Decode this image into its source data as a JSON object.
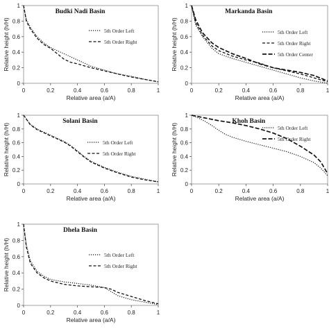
{
  "chart_data": [
    {
      "type": "line",
      "title": "Budki Nadi Basin",
      "xlabel": "Relative area (a/A)",
      "ylabel": "Relative height (h/H)",
      "xlim": [
        0,
        1
      ],
      "ylim": [
        0,
        1
      ],
      "xticks": [
        "0",
        "0.2",
        "0.4",
        "0.6",
        "0.8",
        "1"
      ],
      "yticks": [
        "0",
        "0.2",
        "0.4",
        "0.6",
        "0.8",
        "1"
      ],
      "grid": false,
      "legend": "top-right",
      "series": [
        {
          "name": "5th Order Left",
          "style": "dotted",
          "x": [
            0,
            0.02,
            0.05,
            0.1,
            0.15,
            0.2,
            0.25,
            0.3,
            0.4,
            0.5,
            0.6,
            0.7,
            0.8,
            0.9,
            1.0
          ],
          "y": [
            1.0,
            0.82,
            0.72,
            0.6,
            0.52,
            0.46,
            0.42,
            0.38,
            0.3,
            0.22,
            0.17,
            0.12,
            0.09,
            0.05,
            0.02
          ]
        },
        {
          "name": "5th Order Right",
          "style": "dashed",
          "x": [
            0,
            0.02,
            0.05,
            0.1,
            0.15,
            0.2,
            0.25,
            0.3,
            0.35,
            0.4,
            0.5,
            0.6,
            0.7,
            0.8,
            0.9,
            1.0
          ],
          "y": [
            1.0,
            0.8,
            0.7,
            0.58,
            0.5,
            0.45,
            0.38,
            0.31,
            0.27,
            0.25,
            0.2,
            0.16,
            0.12,
            0.08,
            0.05,
            0.02
          ]
        }
      ]
    },
    {
      "type": "line",
      "title": "Markanda Basin",
      "xlabel": "Relative area (a/A)",
      "ylabel": "Relative height (h/H)",
      "xlim": [
        0,
        1
      ],
      "ylim": [
        0,
        1
      ],
      "xticks": [
        "0",
        "0.2",
        "0.4",
        "0.6",
        "0.8",
        "1"
      ],
      "yticks": [
        "0",
        "0.2",
        "0.4",
        "0.6",
        "0.8",
        "1"
      ],
      "grid": false,
      "legend": "top-right",
      "series": [
        {
          "name": "5th Order Left",
          "style": "dotted",
          "x": [
            0,
            0.03,
            0.08,
            0.15,
            0.2,
            0.3,
            0.4,
            0.5,
            0.6,
            0.7,
            0.8,
            0.9,
            1.0
          ],
          "y": [
            1.0,
            0.75,
            0.6,
            0.45,
            0.38,
            0.32,
            0.27,
            0.22,
            0.17,
            0.12,
            0.07,
            0.03,
            0.0
          ]
        },
        {
          "name": "5th Order Right",
          "style": "dashed",
          "x": [
            0,
            0.03,
            0.08,
            0.15,
            0.2,
            0.3,
            0.4,
            0.5,
            0.6,
            0.7,
            0.8,
            0.9,
            1.0
          ],
          "y": [
            1.0,
            0.78,
            0.62,
            0.48,
            0.42,
            0.35,
            0.3,
            0.26,
            0.2,
            0.16,
            0.12,
            0.07,
            0.02
          ]
        },
        {
          "name": "5th Order Center",
          "style": "longdash",
          "x": [
            0,
            0.03,
            0.08,
            0.15,
            0.2,
            0.3,
            0.4,
            0.5,
            0.6,
            0.7,
            0.8,
            0.9,
            1.0
          ],
          "y": [
            1.0,
            0.82,
            0.65,
            0.52,
            0.46,
            0.38,
            0.32,
            0.25,
            0.2,
            0.17,
            0.14,
            0.1,
            0.03
          ]
        }
      ]
    },
    {
      "type": "line",
      "title": "Solani Basin",
      "xlabel": "Relative area (a/A)",
      "ylabel": "Relative height (h/H)",
      "xlim": [
        0,
        1
      ],
      "ylim": [
        0,
        1
      ],
      "xticks": [
        "0",
        "0.2",
        "0.4",
        "0.6",
        "0.8",
        "1"
      ],
      "yticks": [
        "0",
        "0.2",
        "0.4",
        "0.6",
        "0.8",
        "1"
      ],
      "grid": false,
      "legend": "top-right",
      "series": [
        {
          "name": "5th Order Left",
          "style": "dotted",
          "x": [
            0,
            0.05,
            0.1,
            0.2,
            0.3,
            0.35,
            0.4,
            0.45,
            0.5,
            0.6,
            0.7,
            0.8,
            0.9,
            1.0
          ],
          "y": [
            1.0,
            0.87,
            0.8,
            0.71,
            0.62,
            0.56,
            0.48,
            0.4,
            0.33,
            0.24,
            0.17,
            0.11,
            0.07,
            0.03
          ]
        },
        {
          "name": "5th Order Right",
          "style": "dashed",
          "x": [
            0,
            0.05,
            0.1,
            0.2,
            0.3,
            0.35,
            0.4,
            0.45,
            0.5,
            0.6,
            0.7,
            0.8,
            0.9,
            1.0
          ],
          "y": [
            1.0,
            0.86,
            0.79,
            0.7,
            0.61,
            0.55,
            0.47,
            0.39,
            0.32,
            0.23,
            0.16,
            0.1,
            0.06,
            0.03
          ]
        }
      ]
    },
    {
      "type": "line",
      "title": "Khoh Basin",
      "xlabel": "Relative area (a/A)",
      "ylabel": "Relative height (h/H)",
      "xlim": [
        0,
        1
      ],
      "ylim": [
        0,
        1
      ],
      "xticks": [
        "0",
        "0.2",
        "0.4",
        "0.6",
        "0.8",
        "1"
      ],
      "yticks": [
        "0",
        "0.2",
        "0.4",
        "0.6",
        "0.8",
        "1"
      ],
      "grid": false,
      "legend": "top-right",
      "series": [
        {
          "name": "5th Order Left",
          "style": "dotted",
          "x": [
            0,
            0.05,
            0.1,
            0.15,
            0.2,
            0.25,
            0.3,
            0.4,
            0.5,
            0.6,
            0.7,
            0.8,
            0.9,
            0.95,
            1.0
          ],
          "y": [
            1.0,
            0.96,
            0.91,
            0.85,
            0.78,
            0.72,
            0.68,
            0.62,
            0.57,
            0.52,
            0.47,
            0.4,
            0.31,
            0.23,
            0.12
          ]
        },
        {
          "name": "5th Order Right",
          "style": "longdash",
          "x": [
            0,
            0.1,
            0.2,
            0.3,
            0.4,
            0.5,
            0.6,
            0.7,
            0.8,
            0.9,
            0.95,
            1.0
          ],
          "y": [
            1.0,
            0.96,
            0.92,
            0.89,
            0.85,
            0.8,
            0.74,
            0.66,
            0.55,
            0.42,
            0.32,
            0.15
          ]
        }
      ]
    },
    {
      "type": "line",
      "title": "Dhela Basin",
      "xlabel": "Relative area (a/A)",
      "ylabel": "Relative height (h/H)",
      "xlim": [
        0,
        1
      ],
      "ylim": [
        0,
        1
      ],
      "xticks": [
        "0",
        "0.2",
        "0.4",
        "0.6",
        "0.8",
        "1"
      ],
      "yticks": [
        "0",
        "0.2",
        "0.4",
        "0.6",
        "0.8",
        "1"
      ],
      "grid": false,
      "legend": "top-right",
      "series": [
        {
          "name": "5th Order Left",
          "style": "dotted",
          "x": [
            0,
            0.02,
            0.05,
            0.1,
            0.15,
            0.2,
            0.3,
            0.4,
            0.5,
            0.6,
            0.65,
            0.7,
            0.8,
            0.9,
            1.0
          ],
          "y": [
            1.0,
            0.75,
            0.55,
            0.42,
            0.36,
            0.32,
            0.29,
            0.27,
            0.25,
            0.22,
            0.17,
            0.12,
            0.07,
            0.04,
            0.01
          ]
        },
        {
          "name": "5th Order Right",
          "style": "dashed",
          "x": [
            0,
            0.02,
            0.05,
            0.1,
            0.15,
            0.2,
            0.3,
            0.4,
            0.5,
            0.6,
            0.65,
            0.7,
            0.8,
            0.9,
            1.0
          ],
          "y": [
            1.0,
            0.72,
            0.52,
            0.4,
            0.34,
            0.3,
            0.26,
            0.24,
            0.23,
            0.22,
            0.2,
            0.16,
            0.11,
            0.06,
            0.02
          ]
        }
      ]
    }
  ]
}
